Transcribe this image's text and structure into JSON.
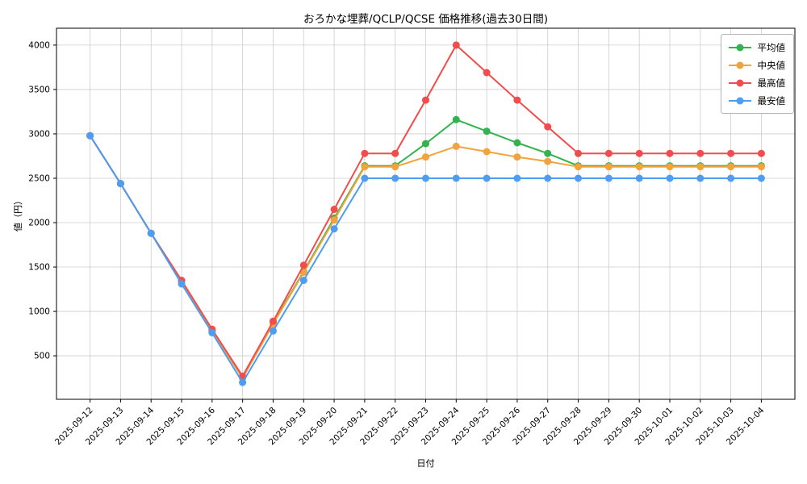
{
  "chart_data": {
    "type": "line",
    "title": "おろかな埋葬/QCLP/QCSE 価格推移(過去30日間)",
    "xlabel": "日付",
    "ylabel": "値（円）",
    "ylim": [
      10,
      4190
    ],
    "yticks": [
      500,
      1000,
      1500,
      2000,
      2500,
      3000,
      3500,
      4000
    ],
    "grid": true,
    "legend_position": "top-right",
    "categories": [
      "2025-09-12",
      "2025-09-13",
      "2025-09-14",
      "2025-09-15",
      "2025-09-16",
      "2025-09-17",
      "2025-09-18",
      "2025-09-19",
      "2025-09-20",
      "2025-09-21",
      "2025-09-22",
      "2025-09-23",
      "2025-09-24",
      "2025-09-25",
      "2025-09-26",
      "2025-09-27",
      "2025-09-28",
      "2025-09-29",
      "2025-09-30",
      "2025-10-01",
      "2025-10-02",
      "2025-10-03",
      "2025-10-04"
    ],
    "series": [
      {
        "name": "平均値",
        "color": "#33b34d",
        "values": [
          2980,
          2440,
          1880,
          1330,
          780,
          250,
          870,
          1450,
          2050,
          2640,
          2640,
          2890,
          3160,
          3030,
          2900,
          2780,
          2640,
          2640,
          2640,
          2640,
          2640,
          2640,
          2640
        ]
      },
      {
        "name": "中央値",
        "color": "#f2a33c",
        "values": [
          2980,
          2440,
          1880,
          1330,
          780,
          250,
          860,
          1440,
          2030,
          2630,
          2630,
          2740,
          2860,
          2800,
          2740,
          2690,
          2630,
          2630,
          2630,
          2630,
          2630,
          2630,
          2630
        ]
      },
      {
        "name": "最高値",
        "color": "#f24c4c",
        "values": [
          2980,
          2440,
          1880,
          1350,
          800,
          270,
          890,
          1520,
          2150,
          2780,
          2780,
          3380,
          4000,
          3690,
          3380,
          3080,
          2780,
          2780,
          2780,
          2780,
          2780,
          2780,
          2780
        ]
      },
      {
        "name": "最安値",
        "color": "#4d9df2",
        "values": [
          2980,
          2440,
          1880,
          1310,
          760,
          200,
          780,
          1350,
          1930,
          2500,
          2500,
          2500,
          2500,
          2500,
          2500,
          2500,
          2500,
          2500,
          2500,
          2500,
          2500,
          2500,
          2500
        ]
      }
    ]
  }
}
